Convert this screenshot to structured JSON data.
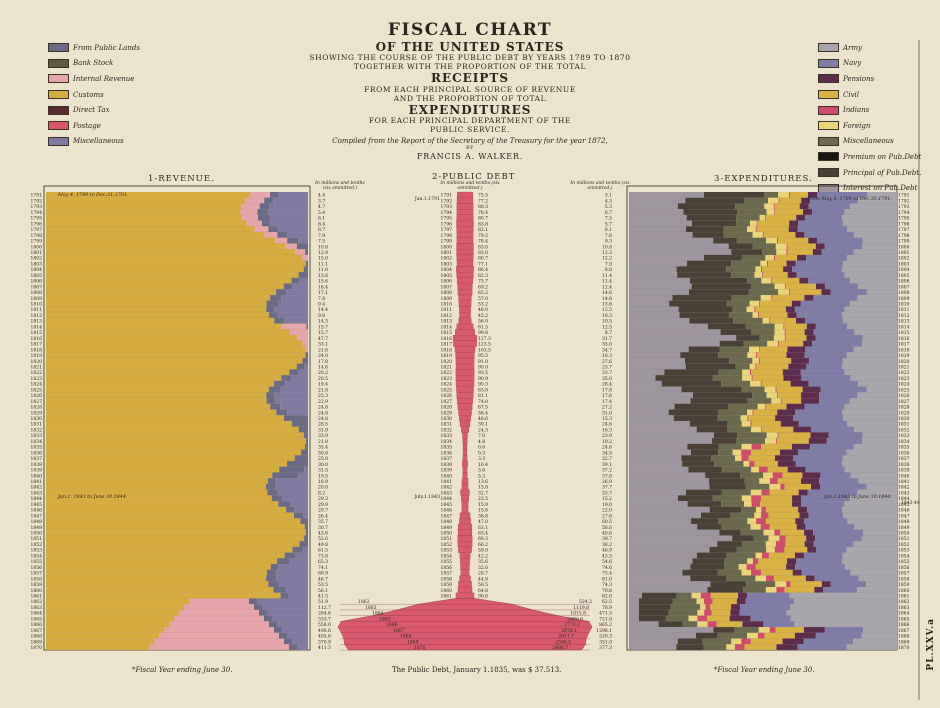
{
  "title": {
    "line1": "FISCAL CHART",
    "line2": "OF THE UNITED STATES",
    "line3": "SHOWING THE COURSE OF THE PUBLIC DEBT BY YEARS 1789 TO 1870",
    "line4": "TOGETHER WITH THE PROPORTION OF THE TOTAL",
    "line5": "RECEIPTS",
    "line6": "FROM EACH PRINCIPAL SOURCE OF REVENUE",
    "line7": "AND THE PROPORTION OF TOTAL",
    "line8": "EXPENDITURES",
    "line9": "FOR EACH PRINCIPAL DEPARTMENT OF THE",
    "line10": "PUBLIC SERVICE.",
    "line11": "Compiled from the Report of the Secretary of the Treasury for the year 1872,",
    "line12": "BY",
    "line13": "FRANCIS A. WALKER."
  },
  "colors": {
    "public_lands": "#6a6a86",
    "bank_stock": "#5c5a44",
    "internal_revenue": "#e7a5ac",
    "customs": "#d5ad3e",
    "direct_tax": "#5a2a30",
    "postage": "#d8566a",
    "miscellaneous": "#807aa2",
    "army": "#a9a5ad",
    "navy": "#807ca8",
    "pensions": "#5d2d4e",
    "civil": "#d8b243",
    "indians": "#cf4d6c",
    "foreign": "#ead57a",
    "misc_exp": "#6b6a4c",
    "premium": "#1a1614",
    "principal": "#4a4036",
    "interest": "#9d969e",
    "debt": "#d85a6c"
  },
  "revenue_legend": [
    {
      "label": "From Public Lands",
      "key": "public_lands"
    },
    {
      "label": "Bank Stock",
      "key": "bank_stock"
    },
    {
      "label": "Internal Revenue",
      "key": "internal_revenue"
    },
    {
      "label": "Customs",
      "key": "customs"
    },
    {
      "label": "Direct Tax",
      "key": "direct_tax"
    },
    {
      "label": "Postage",
      "key": "postage"
    },
    {
      "label": "Miscellaneous",
      "key": "miscellaneous"
    }
  ],
  "expenditure_legend": [
    {
      "label": "Army",
      "key": "army"
    },
    {
      "label": "Navy",
      "key": "navy"
    },
    {
      "label": "Pensions",
      "key": "pensions"
    },
    {
      "label": "Civil",
      "key": "civil"
    },
    {
      "label": "Indians",
      "key": "indians"
    },
    {
      "label": "Foreign",
      "key": "foreign"
    },
    {
      "label": "Miscellaneous",
      "key": "misc_exp"
    },
    {
      "label": "Premium on Pub.Debt",
      "key": "premium"
    },
    {
      "label": "Principal of Pub.Debt.",
      "key": "principal"
    },
    {
      "label": "Interest on Pub.Debt",
      "key": "interest"
    }
  ],
  "sections": {
    "revenue": "1-REVENUE.",
    "debt": "2-PUBLIC DEBT",
    "expenditures": "3-EXPENDITURES."
  },
  "unit_notes": {
    "revenue": "In millions and tenths (six ommitted.)",
    "debt": "In millions and tenths (six ommitted.)",
    "expenditures": "In millions and tenths (six ommitted.)"
  },
  "period_labels": {
    "rev_1": "May 4. 1789 to Dec.31.1791.",
    "rev_2": "Jan.1. 1843 to June 30.1844.",
    "debt_1": "Jan.1.1791",
    "debt_2": "July.1.1843",
    "exp_1": "From May 4. 1789 to Dec.31.1791.",
    "exp_2": "Jan.1.1843 to June 30.1844.",
    "exp_2_side": "1843-44"
  },
  "footnotes": {
    "revenue": "*Fiscal Year ending June 30.",
    "debt": "The Public Debt, January 1.1835, was $ 37.513.",
    "expenditures": "*Fiscal Year ending June 30."
  },
  "plate": "PL.XXV.a",
  "chart_data": {
    "type": "bar",
    "title": "FISCAL CHART OF THE UNITED STATES",
    "years": [
      1791,
      1792,
      1793,
      1794,
      1795,
      1796,
      1797,
      1798,
      1799,
      1800,
      1801,
      1802,
      1803,
      1804,
      1805,
      1806,
      1807,
      1808,
      1809,
      1810,
      1811,
      1812,
      1813,
      1814,
      1815,
      1816,
      1817,
      1818,
      1819,
      1820,
      1821,
      1822,
      1823,
      1824,
      1825,
      1826,
      1827,
      1828,
      1829,
      1830,
      1831,
      1832,
      1833,
      1834,
      1835,
      1836,
      1837,
      1838,
      1839,
      1840,
      1841,
      1842,
      1843,
      1844,
      1845,
      1846,
      1847,
      1848,
      1849,
      1850,
      1851,
      1852,
      1853,
      1854,
      1855,
      1856,
      1857,
      1858,
      1859,
      1860,
      1861,
      1862,
      1863,
      1864,
      1865,
      1866,
      1867,
      1868,
      1869,
      1870
    ],
    "revenue_totals": [
      4.4,
      3.7,
      4.7,
      5.4,
      6.1,
      8.4,
      8.7,
      7.9,
      7.5,
      10.8,
      12.9,
      15.0,
      11.1,
      11.8,
      13.6,
      15.6,
      16.4,
      17.1,
      7.8,
      9.4,
      14.4,
      9.8,
      14.3,
      15.7,
      15.7,
      47.7,
      33.1,
      21.6,
      24.0,
      17.8,
      14.6,
      20.2,
      20.5,
      19.4,
      21.8,
      25.3,
      22.9,
      24.8,
      24.8,
      24.8,
      28.5,
      31.9,
      33.9,
      21.8,
      35.4,
      50.8,
      25.0,
      30.0,
      31.5,
      19.5,
      16.9,
      20.0,
      8.2,
      29.3,
      29.9,
      29.7,
      26.4,
      35.7,
      30.7,
      43.6,
      52.6,
      49.8,
      61.5,
      73.8,
      65.3,
      74.1,
      68.9,
      46.7,
      53.5,
      56.1,
      41.5,
      51.9,
      112.7,
      264.6,
      333.7,
      558.0,
      490.6,
      405.6,
      370.9,
      411.3
    ],
    "debt": [
      75.5,
      77.2,
      80.3,
      78.4,
      80.7,
      83.8,
      82.1,
      79.2,
      78.4,
      83.0,
      83.0,
      80.7,
      77.1,
      86.4,
      82.3,
      75.7,
      69.2,
      65.2,
      57.0,
      53.2,
      48.0,
      45.2,
      56.0,
      81.5,
      99.8,
      127.3,
      123.5,
      103.5,
      95.5,
      91.0,
      90.0,
      93.5,
      90.9,
      90.3,
      83.8,
      81.1,
      74.0,
      67.5,
      58.4,
      48.6,
      39.1,
      24.3,
      7.0,
      4.8,
      0.0,
      0.3,
      3.3,
      10.4,
      3.6,
      5.3,
      13.6,
      15.8,
      32.7,
      23.5,
      15.9,
      15.6,
      38.8,
      47.0,
      63.1,
      63.4,
      68.3,
      66.2,
      59.8,
      42.2,
      35.6,
      32.0,
      28.7,
      44.9,
      58.5,
      64.8,
      90.6,
      524.2,
      1119.8,
      1815.8,
      2680.6,
      2773.2,
      2678.1,
      2611.7,
      2588.5,
      2480.7
    ],
    "expenditure_totals": [
      3.1,
      4.3,
      5.3,
      6.7,
      7.5,
      5.7,
      6.1,
      7.6,
      9.3,
      10.8,
      12.2,
      12.2,
      7.9,
      8.8,
      11.4,
      11.4,
      12.4,
      14.6,
      14.8,
      13.6,
      12.5,
      10.3,
      10.5,
      12.5,
      8.7,
      31.7,
      35.0,
      34.7,
      18.3,
      27.6,
      25.7,
      33.7,
      35.0,
      28.4,
      17.8,
      17.6,
      17.4,
      27.2,
      31.0,
      15.3,
      24.6,
      16.3,
      23.9,
      19.2,
      24.6,
      34.5,
      32.7,
      39.1,
      37.2,
      37.8,
      26.9,
      37.7,
      33.7,
      15.2,
      19.0,
      22.0,
      27.6,
      60.5,
      56.6,
      40.6,
      39.7,
      38.2,
      46.9,
      43.5,
      54.6,
      74.6,
      75.4,
      81.0,
      74.3,
      70.6,
      82.0,
      62.5,
      78.9,
      471.5,
      721.8,
      865.2,
      1298.1,
      520.3,
      351.0,
      377.3
    ],
    "revenue_series": [
      "Customs",
      "Internal Revenue",
      "Public Lands",
      "Direct Tax",
      "Bank Stock",
      "Postage",
      "Miscellaneous"
    ],
    "expenditure_series": [
      "Army",
      "Navy",
      "Pensions",
      "Civil",
      "Indians",
      "Foreign",
      "Miscellaneous",
      "Premium on Pub.Debt",
      "Principal of Pub.Debt.",
      "Interest on Pub.Debt"
    ]
  }
}
